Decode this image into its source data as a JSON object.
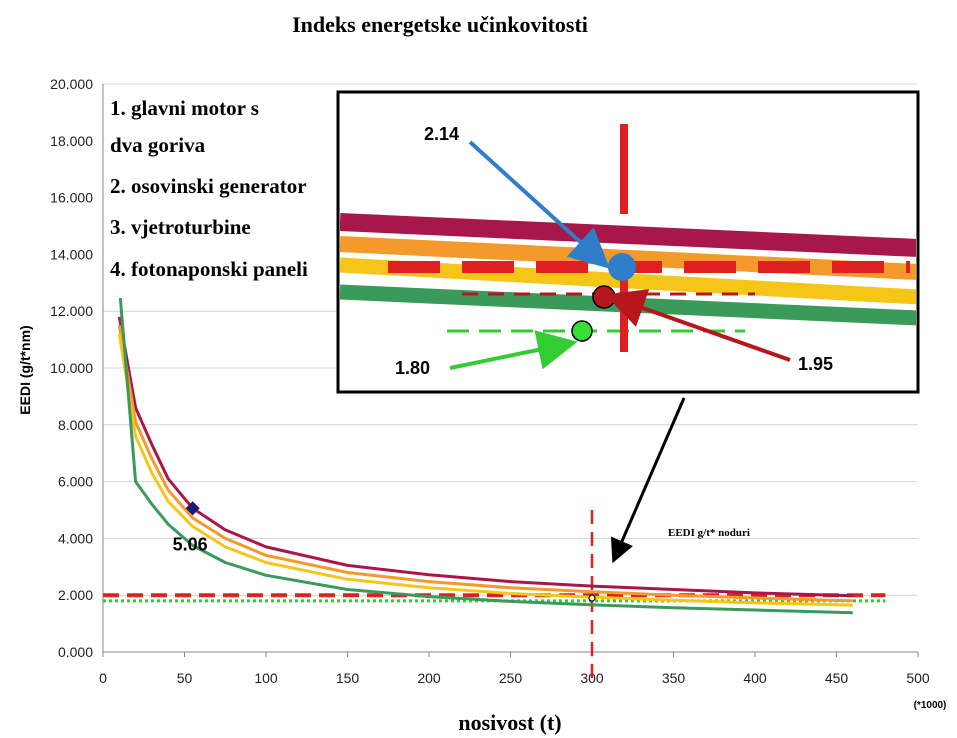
{
  "chart_data": {
    "type": "line",
    "title": "Indeks energetske učinkovitosti",
    "xlabel": "nosivost (t)",
    "x_unit": "(*1000)",
    "ylabel": "EEDI (g/t*nm)",
    "xlim": [
      0,
      500
    ],
    "ylim": [
      0,
      20
    ],
    "x_ticks": [
      "0",
      "50",
      "100",
      "150",
      "200",
      "250",
      "300",
      "350",
      "400",
      "450",
      "500"
    ],
    "y_ticks": [
      "0.000",
      "2.000",
      "4.000",
      "6.000",
      "8.000",
      "10.000",
      "12.000",
      "14.000",
      "16.000",
      "18.000",
      "20.000"
    ],
    "grid": true,
    "legend_items": [
      "1. glavni motor s",
      "dva goriva",
      "2. osovinski generator",
      "3. vjetroturbine",
      "4. fotonaponski paneli"
    ],
    "series": [
      {
        "color": "#a8174a",
        "x": [
          10,
          20,
          30,
          40,
          55,
          75,
          100,
          150,
          200,
          250,
          300,
          350,
          400,
          460
        ],
        "y": [
          11.8,
          8.6,
          7.3,
          6.1,
          5.06,
          4.3,
          3.7,
          3.05,
          2.72,
          2.48,
          2.32,
          2.2,
          2.08,
          1.98
        ]
      },
      {
        "color": "#f39a2b",
        "x": [
          10,
          20,
          30,
          40,
          55,
          75,
          100,
          150,
          200,
          250,
          300,
          350,
          400,
          460
        ],
        "y": [
          11.5,
          8.1,
          6.8,
          5.7,
          4.72,
          4.0,
          3.4,
          2.8,
          2.48,
          2.26,
          2.12,
          2.0,
          1.9,
          1.8
        ]
      },
      {
        "color": "#f5c518",
        "x": [
          10,
          20,
          30,
          40,
          55,
          75,
          100,
          150,
          200,
          250,
          300,
          350,
          400,
          460
        ],
        "y": [
          11.2,
          7.6,
          6.3,
          5.3,
          4.42,
          3.7,
          3.15,
          2.56,
          2.26,
          2.06,
          1.93,
          1.82,
          1.73,
          1.65
        ]
      },
      {
        "color": "#3a9a5a",
        "x": [
          10,
          20,
          30,
          40,
          55,
          75,
          100,
          150,
          200,
          250,
          300,
          350,
          400,
          460
        ],
        "y": [
          12.9,
          6.0,
          5.2,
          4.5,
          3.75,
          3.15,
          2.7,
          2.2,
          1.95,
          1.78,
          1.66,
          1.56,
          1.48,
          1.38
        ]
      }
    ],
    "reference_lines": [
      {
        "color": "#e02020",
        "y": 2.0,
        "style": "dashed"
      },
      {
        "color": "#33cc33",
        "y": 1.8,
        "style": "dotted"
      }
    ],
    "vertical_line": {
      "color": "#e02020",
      "x": 300,
      "style": "dashed"
    },
    "marker_point": {
      "label": "5.06",
      "x": 55,
      "y": 5.06
    },
    "annotations": {
      "eedi_limit": "EEDI  g/t* noduri",
      "inset_value_1": "2.14",
      "inset_value_2": "1.95",
      "inset_value_3": "1.80"
    },
    "colors": {
      "blue": "#2f7ec9",
      "dark_red": "#b5171c",
      "green": "#33cc33",
      "red": "#e02020"
    }
  }
}
